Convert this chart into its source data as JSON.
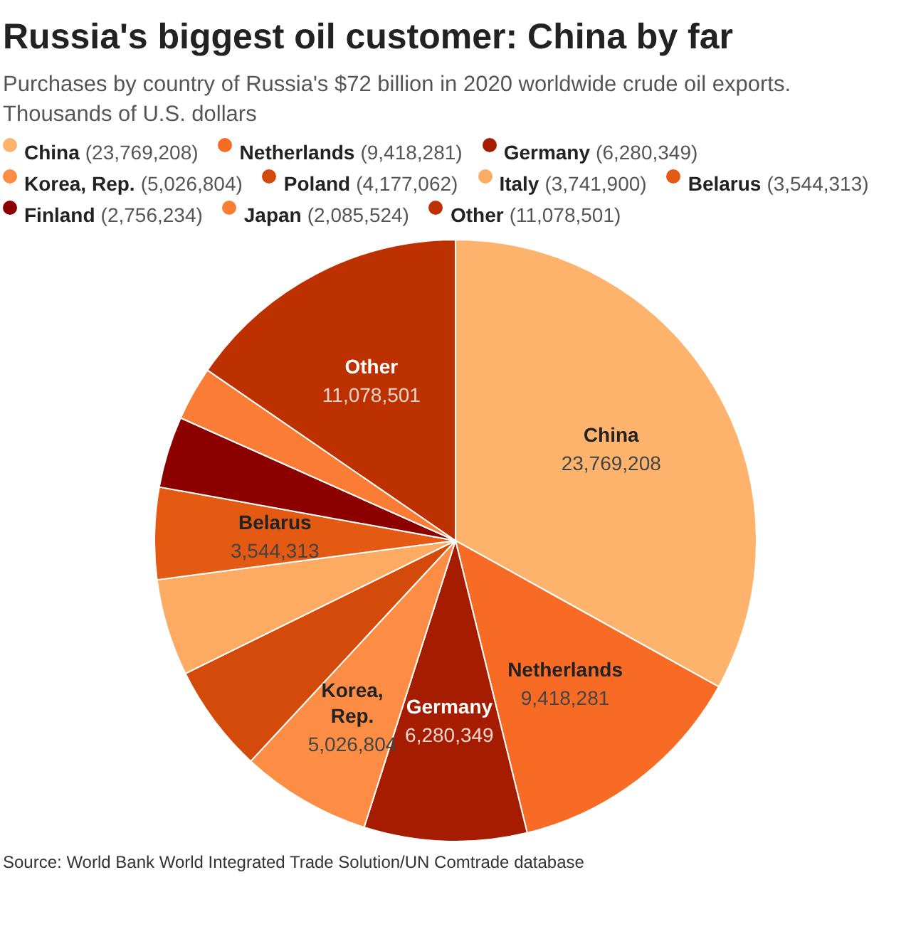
{
  "chart_data": {
    "type": "pie",
    "title": "Russia's biggest oil customer: China by far",
    "subtitle": "Purchases by country of Russia's $72 billion in 2020 worldwide crude oil exports. Thousands of U.S. dollars",
    "categories": [
      "China",
      "Netherlands",
      "Germany",
      "Korea, Rep.",
      "Poland",
      "Italy",
      "Belarus",
      "Finland",
      "Japan",
      "Other"
    ],
    "values": [
      23769208,
      9418281,
      6280349,
      5026804,
      4177062,
      3741900,
      3544313,
      2756234,
      2085524,
      11078501
    ],
    "colors": [
      "#fdb36c",
      "#f76b25",
      "#a61c00",
      "#fd8d45",
      "#d44a0a",
      "#fdaa62",
      "#e55a12",
      "#8c0000",
      "#fb7d35",
      "#bd3000"
    ],
    "value_labels": [
      "(23,769,208)",
      "(9,418,281)",
      "(6,280,349)",
      "(5,026,804)",
      "(4,177,062)",
      "(3,741,900)",
      "(3,544,313)",
      "(2,756,234)",
      "(2,085,524)",
      "(11,078,501)"
    ],
    "legend": "top",
    "annotations": [
      {
        "text": "23,769,208",
        "x": "China"
      },
      {
        "text": "9,418,281",
        "x": "Netherlands"
      },
      {
        "text": "6,280,349",
        "x": "Germany"
      },
      {
        "text": "5,026,804",
        "x": "Korea, Rep."
      },
      {
        "text": "3,544,313",
        "x": "Belarus"
      },
      {
        "text": "11,078,501",
        "x": "Other"
      },
      "Source: World Bank World Integrated Trade Solution/UN Comtrade database"
    ]
  }
}
